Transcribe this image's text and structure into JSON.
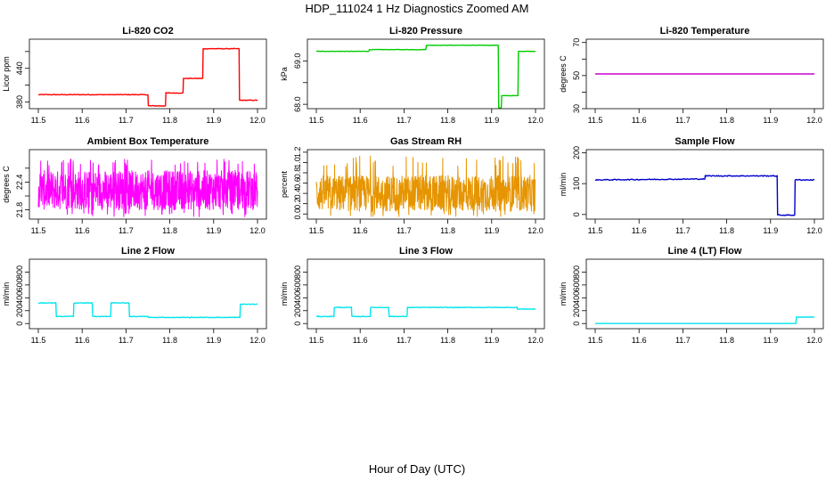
{
  "figure": {
    "title": "HDP_111024  1 Hz Diagnostics Zoomed AM",
    "xlabel": "Hour of Day (UTC)"
  },
  "chart_data": [
    {
      "type": "line",
      "title": "Li-820 CO2",
      "ylabel": "Licor ppm",
      "color": "#ff0000",
      "xlim": [
        11.5,
        12.0
      ],
      "ylim": [
        368,
        492
      ],
      "x_ticks": [
        "11.5",
        "11.6",
        "11.7",
        "11.8",
        "11.9",
        "12.0"
      ],
      "y_ticks": [
        "380",
        "",
        "440",
        ""
      ],
      "y_tick_values": [
        380,
        410,
        440,
        470
      ],
      "noise": 0.6,
      "x": [
        11.5,
        11.75,
        11.751,
        11.79,
        11.791,
        11.83,
        11.831,
        11.875,
        11.876,
        11.958,
        11.959,
        12.0
      ],
      "y": [
        393,
        393,
        373,
        373,
        396,
        396,
        422,
        422,
        475,
        475,
        383,
        383
      ]
    },
    {
      "type": "line",
      "title": "Li-820 Pressure",
      "ylabel": "kPa",
      "color": "#00cc00",
      "xlim": [
        11.5,
        12.0
      ],
      "ylim": [
        67.9,
        69.5
      ],
      "x_ticks": [
        "11.5",
        "11.6",
        "11.7",
        "11.8",
        "11.9",
        "12.0"
      ],
      "y_ticks": [
        "68.0",
        "",
        "69.0"
      ],
      "y_tick_values": [
        68.0,
        68.5,
        69.0
      ],
      "noise": 0.004,
      "x": [
        11.5,
        11.62,
        11.621,
        11.75,
        11.751,
        11.915,
        11.916,
        11.922,
        11.923,
        11.96,
        11.961,
        12.0
      ],
      "y": [
        69.22,
        69.22,
        69.26,
        69.26,
        69.36,
        69.36,
        67.92,
        67.92,
        68.2,
        68.2,
        69.22,
        69.22
      ]
    },
    {
      "type": "line",
      "title": "Li-820 Temperature",
      "ylabel": "degrees C",
      "color": "#cc00cc",
      "xlim": [
        11.5,
        12.0
      ],
      "ylim": [
        30,
        72
      ],
      "x_ticks": [
        "11.5",
        "11.6",
        "11.7",
        "11.8",
        "11.9",
        "12.0"
      ],
      "y_ticks": [
        "30",
        "",
        "50",
        "",
        "70"
      ],
      "y_tick_values": [
        30,
        40,
        50,
        60,
        70
      ],
      "noise": 0,
      "x": [
        11.5,
        12.0
      ],
      "y": [
        51,
        51
      ]
    },
    {
      "type": "line",
      "title": "Ambient Box Temperature",
      "ylabel": "degrees C",
      "color": "#ff00ff",
      "xlim": [
        11.5,
        12.0
      ],
      "ylim": [
        21.6,
        23.1
      ],
      "x_ticks": [
        "11.5",
        "11.6",
        "11.7",
        "11.8",
        "11.9",
        "12.0"
      ],
      "y_ticks": [
        "21.8",
        "",
        "22.4",
        ""
      ],
      "y_tick_values": [
        21.8,
        22.1,
        22.4,
        22.7
      ],
      "noise_band": [
        21.8,
        22.65,
        21.65,
        22.9
      ],
      "x": [
        11.5,
        12.0
      ],
      "y": [
        22.2,
        22.2
      ]
    },
    {
      "type": "line",
      "title": "Gas Stream RH",
      "ylabel": "percent",
      "color": "#e69500",
      "xlim": [
        11.5,
        12.0
      ],
      "ylim": [
        -0.1,
        1.25
      ],
      "x_ticks": [
        "11.5",
        "11.6",
        "11.7",
        "11.8",
        "11.9",
        "12.0"
      ],
      "y_ticks": [
        "0.0",
        "0.2",
        "0.4",
        "0.6",
        "0.8",
        "1.0",
        "1.2"
      ],
      "y_tick_values": [
        0.0,
        0.2,
        0.4,
        0.6,
        0.8,
        1.0,
        1.2
      ],
      "noise_band": [
        0.05,
        0.75,
        -0.05,
        1.15
      ],
      "x": [
        11.5,
        12.0
      ],
      "y": [
        0.4,
        0.4
      ]
    },
    {
      "type": "line",
      "title": "Sample Flow",
      "ylabel": "ml/min",
      "color": "#0000cc",
      "xlim": [
        11.5,
        12.0
      ],
      "ylim": [
        -15,
        210
      ],
      "x_ticks": [
        "11.5",
        "11.6",
        "11.7",
        "11.8",
        "11.9",
        "12.0"
      ],
      "y_ticks": [
        "0",
        "100",
        "200"
      ],
      "y_tick_values": [
        0,
        100,
        200
      ],
      "noise": 1.5,
      "x": [
        11.5,
        11.75,
        11.751,
        11.915,
        11.916,
        11.955,
        11.956,
        12.0
      ],
      "y": [
        112,
        115,
        125,
        125,
        -2,
        -2,
        112,
        112
      ]
    },
    {
      "type": "line",
      "title": "Line 2 Flow",
      "ylabel": "ml/min",
      "color": "#00e5ee",
      "xlim": [
        11.5,
        12.0
      ],
      "ylim": [
        -80,
        1000
      ],
      "x_ticks": [
        "11.5",
        "11.6",
        "11.7",
        "11.8",
        "11.9",
        "12.0"
      ],
      "y_ticks": [
        "0",
        "200",
        "400",
        "600",
        "800"
      ],
      "y_tick_values": [
        0,
        200,
        400,
        600,
        800
      ],
      "noise": 5,
      "x": [
        11.5,
        11.54,
        11.541,
        11.58,
        11.581,
        11.623,
        11.624,
        11.665,
        11.666,
        11.707,
        11.708,
        11.75,
        11.751,
        11.96,
        11.961,
        12.0
      ],
      "y": [
        320,
        320,
        110,
        110,
        320,
        320,
        110,
        110,
        320,
        320,
        110,
        110,
        95,
        95,
        300,
        300
      ]
    },
    {
      "type": "line",
      "title": "Line 3 Flow",
      "ylabel": "ml/min",
      "color": "#00e5ee",
      "xlim": [
        11.5,
        12.0
      ],
      "ylim": [
        -80,
        1000
      ],
      "x_ticks": [
        "11.5",
        "11.6",
        "11.7",
        "11.8",
        "11.9",
        "12.0"
      ],
      "y_ticks": [
        "0",
        "200",
        "400",
        "600",
        "800"
      ],
      "y_tick_values": [
        0,
        200,
        400,
        600,
        800
      ],
      "noise": 5,
      "x": [
        11.5,
        11.54,
        11.541,
        11.58,
        11.581,
        11.623,
        11.624,
        11.665,
        11.666,
        11.707,
        11.708,
        11.958,
        11.959,
        12.0
      ],
      "y": [
        110,
        110,
        250,
        250,
        110,
        110,
        250,
        250,
        110,
        110,
        250,
        250,
        225,
        225
      ]
    },
    {
      "type": "line",
      "title": "Line 4 (LT) Flow",
      "ylabel": "ml/min",
      "color": "#00e5ee",
      "xlim": [
        11.5,
        12.0
      ],
      "ylim": [
        -80,
        1000
      ],
      "x_ticks": [
        "11.5",
        "11.6",
        "11.7",
        "11.8",
        "11.9",
        "12.0"
      ],
      "y_ticks": [
        "0",
        "200",
        "400",
        "600",
        "800"
      ],
      "y_tick_values": [
        0,
        200,
        400,
        600,
        800
      ],
      "noise": 0,
      "x": [
        11.5,
        11.958,
        11.959,
        12.0
      ],
      "y": [
        0,
        0,
        100,
        100
      ]
    }
  ]
}
